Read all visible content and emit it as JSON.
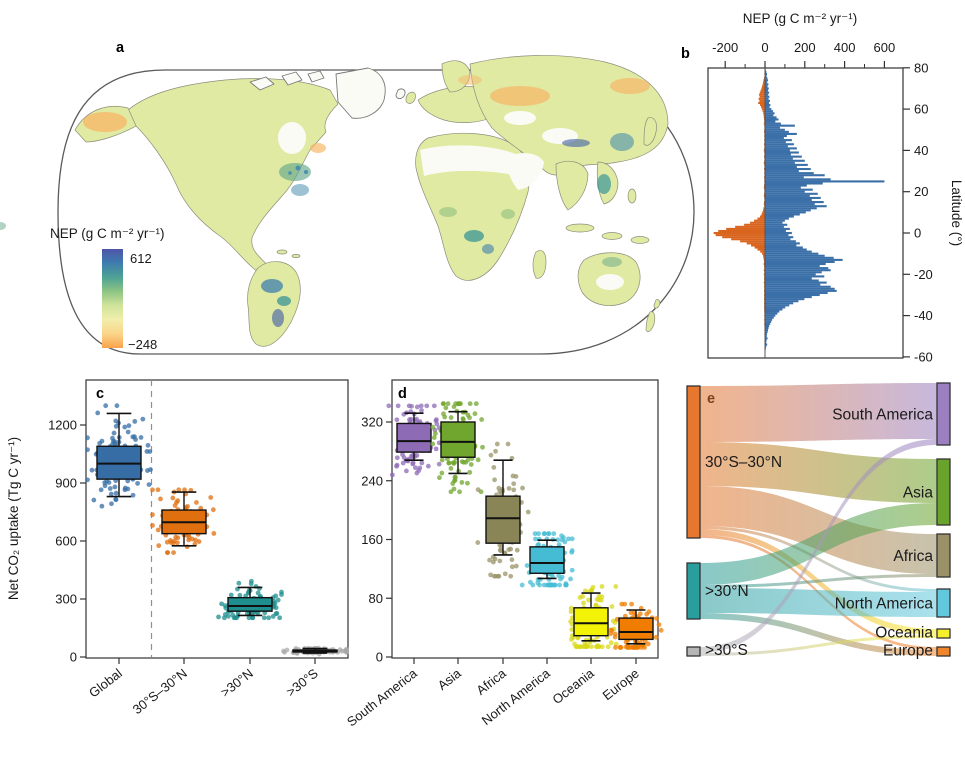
{
  "panel_letters": {
    "a": "a",
    "b": "b",
    "c": "c",
    "d": "d",
    "e": "e"
  },
  "panel_a": {
    "legend_title": "NEP (g C m⁻² yr⁻¹)",
    "legend_max": "612",
    "legend_min": "−248",
    "colorbar_stops": [
      "#4f55a7",
      "#3e7cae",
      "#4fa394",
      "#8ec584",
      "#cfe49a",
      "#f0eeab",
      "#fbd489",
      "#f9a24b"
    ],
    "land_color": "#e0eaa2",
    "outline_color": "#5a5a5a"
  },
  "chart_data": [
    {
      "id": "panel_b",
      "type": "bar",
      "title": "NEP (g C m⁻² yr⁻¹)",
      "xlabel": "",
      "ylabel": "Latitude (°)",
      "xticks": [
        -200,
        0,
        200,
        400,
        600
      ],
      "xminor": [
        -100,
        100,
        300,
        500
      ],
      "yticks": [
        80,
        60,
        40,
        20,
        0,
        -20,
        -40,
        -60
      ],
      "xlim": [
        -286,
        693
      ],
      "ylim": [
        -60.5,
        80
      ],
      "pos_color": "#3a6fa8",
      "neg_color": "#d9641e",
      "profile": [
        [
          79,
          4,
          1
        ],
        [
          78,
          7,
          2
        ],
        [
          77,
          10,
          3
        ],
        [
          76,
          8,
          2
        ],
        [
          75,
          12,
          5
        ],
        [
          74,
          15,
          8
        ],
        [
          73,
          11,
          10
        ],
        [
          72,
          17,
          12
        ],
        [
          71,
          13,
          15
        ],
        [
          70,
          19,
          18
        ],
        [
          69,
          15,
          22
        ],
        [
          68,
          21,
          26
        ],
        [
          67,
          16,
          30
        ],
        [
          66,
          22,
          27
        ],
        [
          65,
          18,
          32
        ],
        [
          64,
          25,
          28
        ],
        [
          63,
          20,
          34
        ],
        [
          62,
          27,
          25
        ],
        [
          61,
          23,
          20
        ],
        [
          60,
          32,
          16
        ],
        [
          59,
          40,
          12
        ],
        [
          58,
          48,
          9
        ],
        [
          57,
          42,
          7
        ],
        [
          56,
          58,
          6
        ],
        [
          55,
          68,
          5
        ],
        [
          54,
          52,
          4
        ],
        [
          53,
          80,
          6
        ],
        [
          52,
          150,
          4
        ],
        [
          51,
          75,
          3
        ],
        [
          50,
          100,
          4
        ],
        [
          49,
          120,
          5
        ],
        [
          48,
          160,
          3
        ],
        [
          47,
          110,
          4
        ],
        [
          46,
          95,
          3
        ],
        [
          45,
          135,
          4
        ],
        [
          44,
          105,
          3
        ],
        [
          43,
          145,
          5
        ],
        [
          42,
          115,
          3
        ],
        [
          41,
          160,
          4
        ],
        [
          40,
          125,
          6
        ],
        [
          39,
          170,
          4
        ],
        [
          38,
          130,
          3
        ],
        [
          37,
          185,
          5
        ],
        [
          36,
          140,
          3
        ],
        [
          35,
          200,
          4
        ],
        [
          34,
          150,
          6
        ],
        [
          33,
          215,
          4
        ],
        [
          32,
          160,
          3
        ],
        [
          31,
          230,
          5
        ],
        [
          30,
          170,
          3
        ],
        [
          29,
          245,
          4
        ],
        [
          28,
          300,
          3
        ],
        [
          27,
          195,
          5
        ],
        [
          26,
          330,
          3
        ],
        [
          25,
          600,
          4
        ],
        [
          24,
          290,
          3
        ],
        [
          23,
          210,
          5
        ],
        [
          22,
          180,
          6
        ],
        [
          21,
          240,
          4
        ],
        [
          20,
          200,
          3
        ],
        [
          19,
          265,
          5
        ],
        [
          18,
          225,
          6
        ],
        [
          17,
          280,
          4
        ],
        [
          16,
          235,
          3
        ],
        [
          15,
          295,
          5
        ],
        [
          14,
          250,
          6
        ],
        [
          13,
          310,
          4
        ],
        [
          12,
          260,
          8
        ],
        [
          11,
          230,
          10
        ],
        [
          10,
          205,
          14
        ],
        [
          9,
          175,
          18
        ],
        [
          8,
          145,
          25
        ],
        [
          7,
          120,
          38
        ],
        [
          6,
          100,
          55
        ],
        [
          5,
          88,
          75
        ],
        [
          4,
          112,
          105
        ],
        [
          3,
          95,
          150
        ],
        [
          2,
          125,
          195
        ],
        [
          1,
          105,
          235
        ],
        [
          0,
          135,
          258
        ],
        [
          -1,
          118,
          248
        ],
        [
          -2,
          142,
          215
        ],
        [
          -3,
          128,
          170
        ],
        [
          -4,
          155,
          125
        ],
        [
          -5,
          175,
          92
        ],
        [
          -6,
          158,
          70
        ],
        [
          -7,
          190,
          52
        ],
        [
          -8,
          210,
          38
        ],
        [
          -9,
          235,
          24
        ],
        [
          -10,
          268,
          15
        ],
        [
          -11,
          300,
          10
        ],
        [
          -12,
          345,
          8
        ],
        [
          -13,
          390,
          6
        ],
        [
          -14,
          350,
          5
        ],
        [
          -15,
          305,
          7
        ],
        [
          -16,
          275,
          5
        ],
        [
          -17,
          318,
          4
        ],
        [
          -18,
          330,
          6
        ],
        [
          -19,
          285,
          4
        ],
        [
          -20,
          255,
          6
        ],
        [
          -21,
          298,
          4
        ],
        [
          -22,
          235,
          5
        ],
        [
          -23,
          270,
          4
        ],
        [
          -24,
          310,
          6
        ],
        [
          -25,
          278,
          4
        ],
        [
          -26,
          330,
          5
        ],
        [
          -27,
          350,
          4
        ],
        [
          -28,
          360,
          5
        ],
        [
          -29,
          315,
          4
        ],
        [
          -30,
          275,
          5
        ],
        [
          -31,
          235,
          4
        ],
        [
          -32,
          198,
          5
        ],
        [
          -33,
          168,
          4
        ],
        [
          -34,
          142,
          5
        ],
        [
          -35,
          122,
          4
        ],
        [
          -36,
          102,
          5
        ],
        [
          -37,
          88,
          4
        ],
        [
          -38,
          72,
          4
        ],
        [
          -39,
          62,
          3
        ],
        [
          -40,
          52,
          4
        ],
        [
          -41,
          44,
          3
        ],
        [
          -42,
          36,
          4
        ],
        [
          -43,
          31,
          3
        ],
        [
          -44,
          26,
          4
        ],
        [
          -45,
          21,
          3
        ],
        [
          -46,
          18,
          2
        ],
        [
          -47,
          15,
          3
        ],
        [
          -48,
          13,
          2
        ],
        [
          -49,
          10,
          3
        ],
        [
          -50,
          9,
          2
        ],
        [
          -51,
          13,
          2
        ],
        [
          -52,
          8,
          2
        ],
        [
          -53,
          6,
          2
        ],
        [
          -54,
          11,
          1
        ],
        [
          -55,
          6,
          2
        ],
        [
          -56,
          4,
          1
        ]
      ]
    },
    {
      "id": "panel_c",
      "type": "box",
      "ylabel": "Net CO₂ uptake (Tg C yr⁻¹)",
      "yticks": [
        0,
        300,
        600,
        900,
        1200
      ],
      "ylim": [
        0,
        1400
      ],
      "separator_after_first": true,
      "categories": [
        "Global",
        "30°S–30°N",
        ">30°N",
        ">30°S"
      ],
      "series": [
        {
          "label": "Global",
          "color": "#366da4",
          "point_color": "#366da4",
          "low": 830,
          "q1": 920,
          "median": 1000,
          "q3": 1090,
          "high": 1260,
          "pt_min": 780,
          "pt_max": 1300
        },
        {
          "label": "30°S–30°N",
          "color": "#e06f10",
          "point_color": "#e06f10",
          "low": 575,
          "q1": 638,
          "median": 697,
          "q3": 760,
          "high": 853,
          "pt_min": 540,
          "pt_max": 865
        },
        {
          "label": ">30°N",
          "color": "#1f8e8e",
          "point_color": "#1f8e8e",
          "low": 215,
          "q1": 237,
          "median": 264,
          "q3": 307,
          "high": 360,
          "pt_min": 203,
          "pt_max": 392
        },
        {
          "label": ">30°S",
          "color": "#0a0a0a",
          "point_color": "#a8a8a8",
          "low": 20,
          "q1": 26,
          "median": 31,
          "q3": 36,
          "high": 44,
          "pt_min": 14,
          "pt_max": 52
        }
      ]
    },
    {
      "id": "panel_d",
      "type": "box",
      "ylabel": "",
      "yticks": [
        0,
        80,
        160,
        240,
        320
      ],
      "ylim": [
        0,
        360
      ],
      "separator_after_first": false,
      "categories": [
        "South America",
        "Asia",
        "Africa",
        "North America",
        "Oceania",
        "Europe"
      ],
      "series": [
        {
          "label": "South America",
          "color": "#8d6bb5",
          "point_color": "#8d6bb5",
          "low": 268,
          "q1": 279,
          "median": 294,
          "q3": 318,
          "high": 332,
          "pt_min": 248,
          "pt_max": 342
        },
        {
          "label": "Asia",
          "color": "#71a62e",
          "point_color": "#71a62e",
          "low": 250,
          "q1": 272,
          "median": 293,
          "q3": 320,
          "high": 334,
          "pt_min": 225,
          "pt_max": 345
        },
        {
          "label": "Africa",
          "color": "#8a8557",
          "point_color": "#9a9468",
          "low": 139,
          "q1": 155,
          "median": 189,
          "q3": 219,
          "high": 268,
          "pt_min": 110,
          "pt_max": 290
        },
        {
          "label": "North America",
          "color": "#45bcd4",
          "point_color": "#45bcd4",
          "low": 107,
          "q1": 114,
          "median": 128,
          "q3": 150,
          "high": 159,
          "pt_min": 98,
          "pt_max": 168
        },
        {
          "label": "Oceania",
          "color": "#f3f307",
          "point_color": "#d8d818",
          "low": 22,
          "q1": 29,
          "median": 46,
          "q3": 67,
          "high": 87,
          "pt_min": 14,
          "pt_max": 96
        },
        {
          "label": "Europe",
          "color": "#f07d00",
          "point_color": "#f07d00",
          "low": 18,
          "q1": 24,
          "median": 34,
          "q3": 53,
          "high": 64,
          "pt_min": 13,
          "pt_max": 72
        }
      ]
    },
    {
      "id": "panel_e",
      "type": "sankey",
      "left_nodes": [
        {
          "id": "trop",
          "label": "30°S–30°N",
          "color": "#e5772e"
        },
        {
          "id": "n30",
          "label": ">30°N",
          "color": "#2a9d9d"
        },
        {
          "id": "s30",
          "label": ">30°S",
          "color": "#b5b5b5"
        }
      ],
      "right_nodes": [
        {
          "id": "sa",
          "label": "South America",
          "color": "#9b7fc0"
        },
        {
          "id": "as",
          "label": "Asia",
          "color": "#6aa32b"
        },
        {
          "id": "af",
          "label": "Africa",
          "color": "#9a9168"
        },
        {
          "id": "na",
          "label": "North America",
          "color": "#62c8de"
        },
        {
          "id": "oc",
          "label": "Oceania",
          "color": "#f7ef2a"
        },
        {
          "id": "eu",
          "label": "Europe",
          "color": "#f0852c"
        }
      ],
      "links": [
        {
          "source": "trop",
          "target": "sa",
          "value": 56
        },
        {
          "source": "trop",
          "target": "as",
          "value": 44
        },
        {
          "source": "trop",
          "target": "af",
          "value": 40
        },
        {
          "source": "trop",
          "target": "na",
          "value": 3
        },
        {
          "source": "trop",
          "target": "oc",
          "value": 6
        },
        {
          "source": "trop",
          "target": "eu",
          "value": 3
        },
        {
          "source": "n30",
          "target": "as",
          "value": 22
        },
        {
          "source": "n30",
          "target": "af",
          "value": 3
        },
        {
          "source": "n30",
          "target": "na",
          "value": 25
        },
        {
          "source": "n30",
          "target": "eu",
          "value": 6
        },
        {
          "source": "s30",
          "target": "sa",
          "value": 6
        },
        {
          "source": "s30",
          "target": "oc",
          "value": 3
        }
      ]
    }
  ]
}
